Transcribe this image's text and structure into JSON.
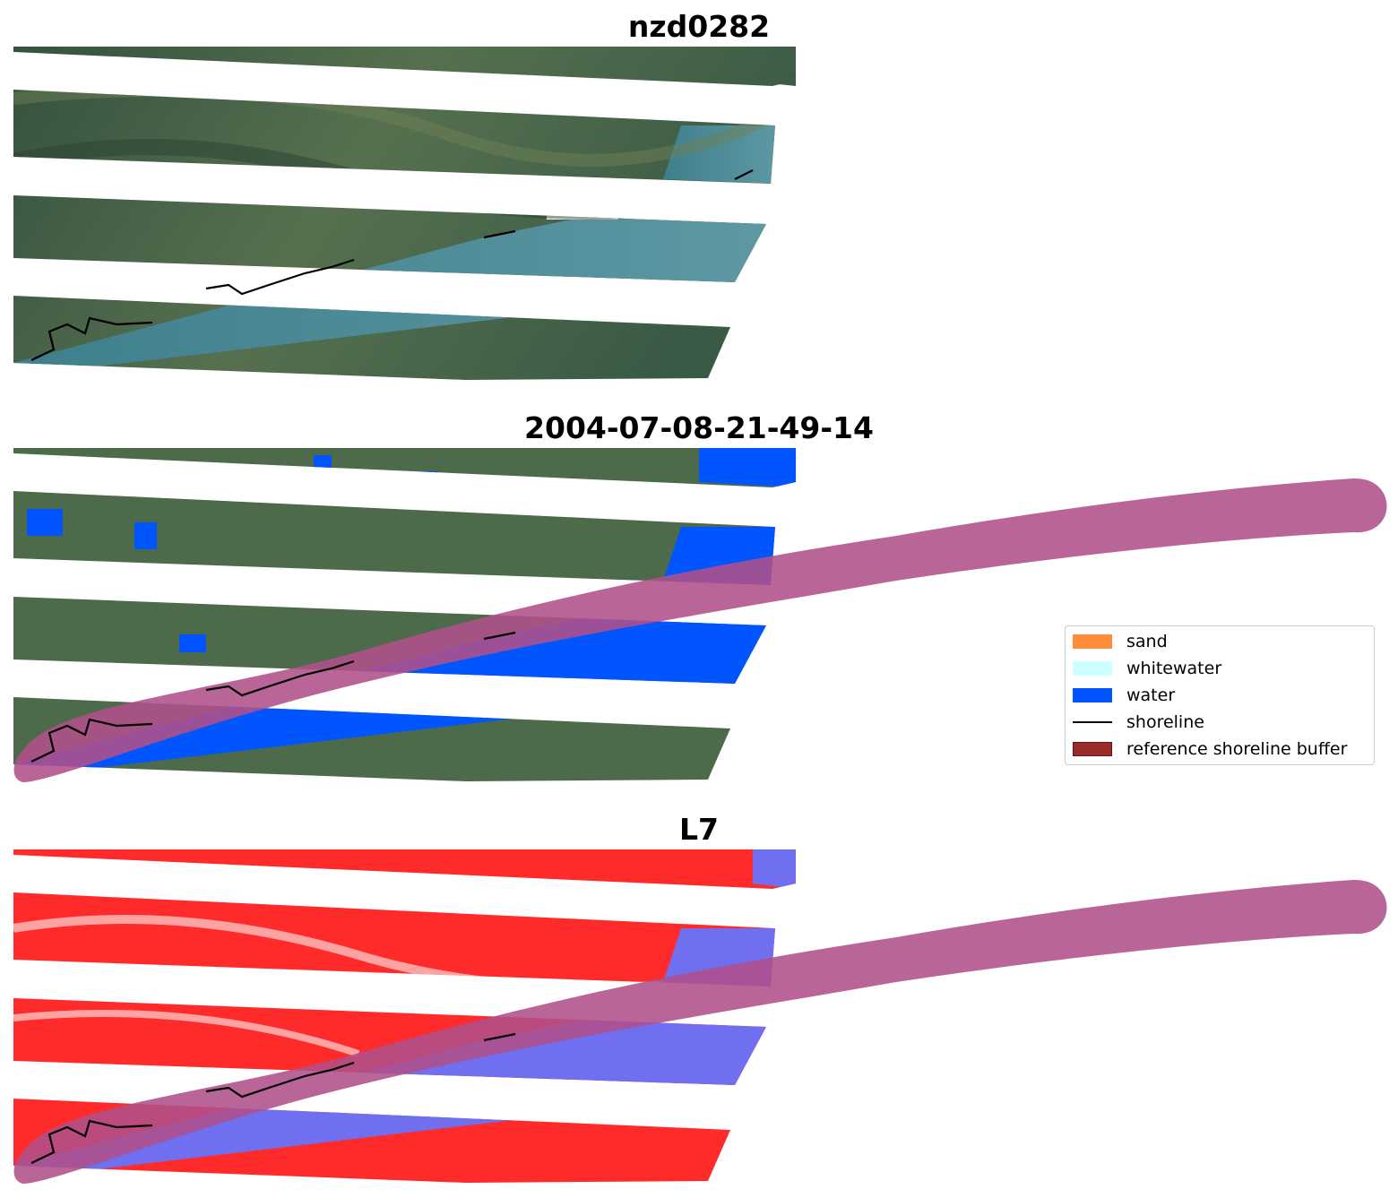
{
  "panels": {
    "rgb_title": "nzd0282",
    "classified_title": "2004-07-08-21-49-14",
    "index_title": "L7"
  },
  "legend": {
    "items": [
      {
        "label": "sand",
        "color": "#ff8c3a",
        "kind": "patch"
      },
      {
        "label": "whitewater",
        "color": "#ccffff",
        "kind": "patch"
      },
      {
        "label": "water",
        "color": "#0055ff",
        "kind": "patch"
      },
      {
        "label": "shoreline",
        "color": "#000000",
        "kind": "line"
      },
      {
        "label": "reference shoreline buffer",
        "color": "#9b2a2a",
        "kind": "patch"
      }
    ]
  },
  "colors": {
    "land_rgb": "#3f5a45",
    "water_rgb": "#4e8a99",
    "water_class": "#0055ff",
    "land_index": "#ff2a2a",
    "water_index": "#6f6ff0",
    "buffer_overlay": "#b0508a",
    "shoreline": "#000000"
  }
}
